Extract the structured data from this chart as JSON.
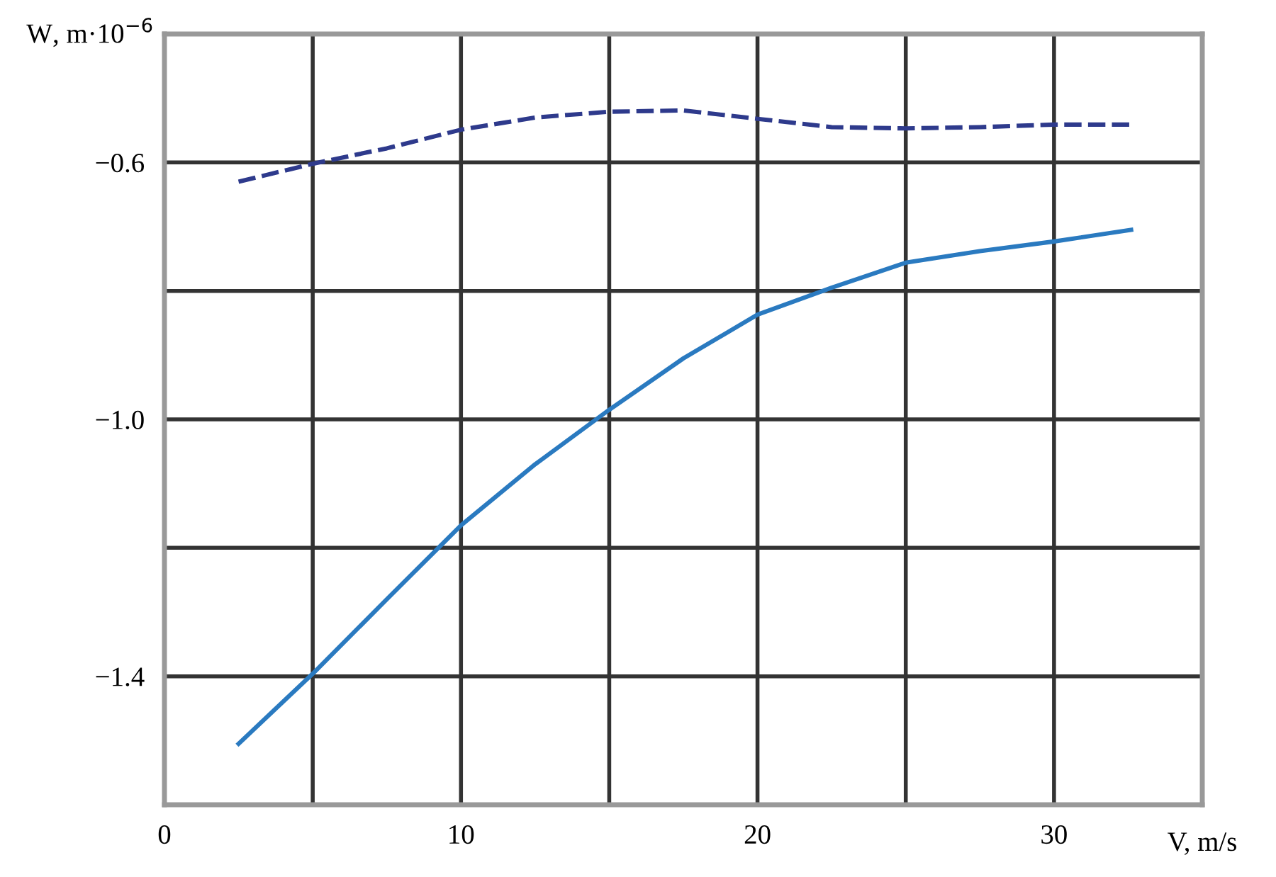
{
  "chart_data": {
    "type": "line",
    "xlabel": "V, m/s",
    "ylabel": "W, m·10$^{−6}$",
    "x": [
      2.5,
      5,
      7.5,
      10,
      12.5,
      15,
      17.5,
      20,
      22.5,
      25,
      27.5,
      30,
      32.6
    ],
    "series": [
      {
        "color": "#2e3a8c",
        "line_style": "dashed",
        "values": [
          -0.63,
          -0.602,
          -0.578,
          -0.549,
          -0.53,
          -0.521,
          -0.519,
          -0.532,
          -0.545,
          -0.547,
          -0.545,
          -0.541,
          -0.541
        ]
      },
      {
        "color": "#2a7ac0",
        "line_style": "solid",
        "values": [
          -1.505,
          -1.396,
          -1.28,
          -1.165,
          -1.07,
          -0.985,
          -0.905,
          -0.837,
          -0.795,
          -0.756,
          -0.738,
          -0.723,
          -0.705
        ]
      }
    ],
    "xlim": [
      0,
      35
    ],
    "ylim": [
      -1.6,
      -0.4
    ],
    "xticks": [
      0,
      {
        "value": 5,
        "label": null
      },
      10,
      {
        "value": 15,
        "label": null
      },
      20,
      {
        "value": 25,
        "label": null
      },
      30,
      {
        "value": 35,
        "label": null
      }
    ],
    "yticks": [
      {
        "value": -1.6,
        "label": null
      },
      {
        "value": -1.4,
        "label": "−1.4"
      },
      {
        "value": -1.2,
        "label": null
      },
      {
        "value": -1.0,
        "label": "−1.0"
      },
      {
        "value": -0.8,
        "label": null
      },
      {
        "value": -0.6,
        "label": "−0.6"
      },
      {
        "value": -0.4,
        "label": null
      }
    ],
    "grid": true
  }
}
